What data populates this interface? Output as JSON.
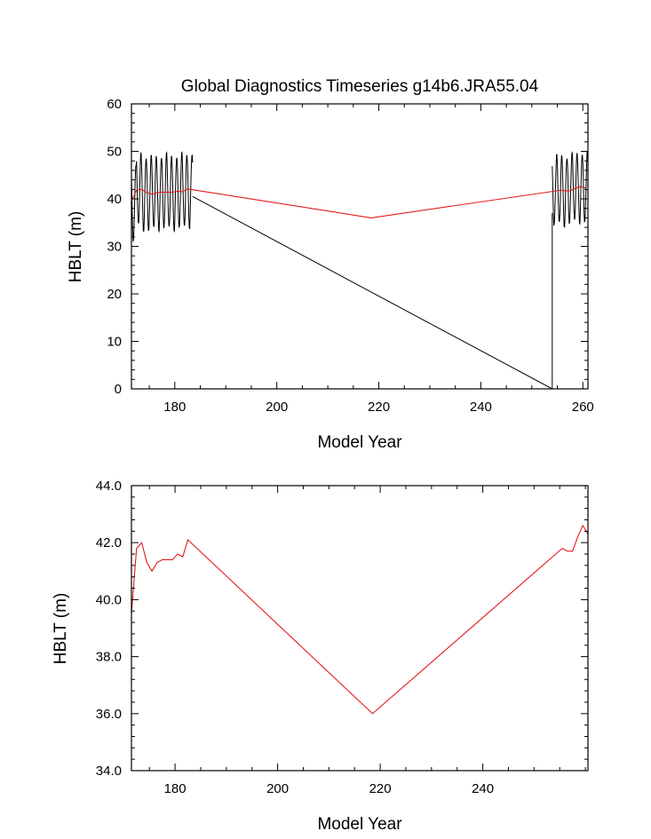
{
  "chart_data": [
    {
      "type": "line",
      "title": "Global Diagnostics Timeseries g14b6.JRA55.04",
      "xlabel": "Model Year",
      "ylabel": "HBLT (m)",
      "xlim": [
        171.5,
        261
      ],
      "ylim": [
        0,
        60
      ],
      "xticks": [
        180,
        200,
        220,
        240,
        260
      ],
      "xtick_labels": [
        "180",
        "200",
        "220",
        "240",
        "260"
      ],
      "yticks": [
        0,
        10,
        20,
        30,
        40,
        50,
        60
      ],
      "ytick_labels": [
        "0",
        "10",
        "20",
        "30",
        "40",
        "50",
        "60"
      ],
      "grid": false,
      "series": [
        {
          "color": "#000000",
          "kind": "monthly",
          "segments": [
            {
              "start": 171.5,
              "end": 183.5,
              "annual_mean": [
                38.8,
                42.0,
                41.3,
                41.0,
                41.3,
                41.4,
                41.5,
                41.4,
                41.4,
                41.6,
                41.6,
                42.0
              ],
              "amplitude": 8.5
            },
            {
              "start": 254.0,
              "end": 261.0,
              "annual_mean": [
                41.7,
                41.9,
                41.7,
                42.0,
                42.4,
                42.5,
                42.3
              ],
              "amplitude": 8.0
            }
          ],
          "connectors": [
            {
              "x": [
                183.5,
                254.0
              ],
              "y": [
                40.5,
                0
              ]
            },
            {
              "x": [
                254.0,
                254.0
              ],
              "y": [
                0,
                37.0
              ]
            }
          ]
        },
        {
          "color": "#e31a1c",
          "x": [
            171.5,
            172.5,
            173.5,
            174.5,
            175.5,
            176.5,
            177.5,
            178.5,
            179.5,
            180.5,
            181.5,
            182.5,
            218.5,
            255.5,
            256.5,
            257.5,
            258.5,
            259.5,
            260.5
          ],
          "y": [
            39.5,
            41.8,
            42.0,
            41.3,
            41.0,
            41.3,
            41.4,
            41.4,
            41.4,
            41.6,
            41.5,
            42.1,
            36.0,
            41.8,
            41.7,
            41.7,
            42.2,
            42.6,
            42.3
          ]
        }
      ]
    },
    {
      "type": "line",
      "title": "",
      "xlabel": "Model Year",
      "ylabel": "HBLT (m)",
      "xlim": [
        171.5,
        260.5
      ],
      "ylim": [
        34,
        44
      ],
      "xticks": [
        180,
        200,
        220,
        240
      ],
      "xtick_labels": [
        "180",
        "200",
        "220",
        "240"
      ],
      "yticks": [
        34,
        36,
        38,
        40,
        42,
        44
      ],
      "ytick_labels": [
        "34.0",
        "36.0",
        "38.0",
        "40.0",
        "42.0",
        "44.0"
      ],
      "grid": false,
      "series": [
        {
          "color": "#e31a1c",
          "x": [
            171.5,
            172.5,
            173.5,
            174.5,
            175.5,
            176.5,
            177.5,
            178.5,
            179.5,
            180.5,
            181.5,
            182.5,
            218.5,
            255.5,
            256.5,
            257.5,
            258.5,
            259.5,
            260.5
          ],
          "y": [
            39.5,
            41.8,
            42.0,
            41.3,
            41.0,
            41.3,
            41.4,
            41.4,
            41.4,
            41.6,
            41.5,
            42.1,
            36.0,
            41.8,
            41.7,
            41.7,
            42.2,
            42.6,
            42.3
          ]
        }
      ]
    }
  ]
}
